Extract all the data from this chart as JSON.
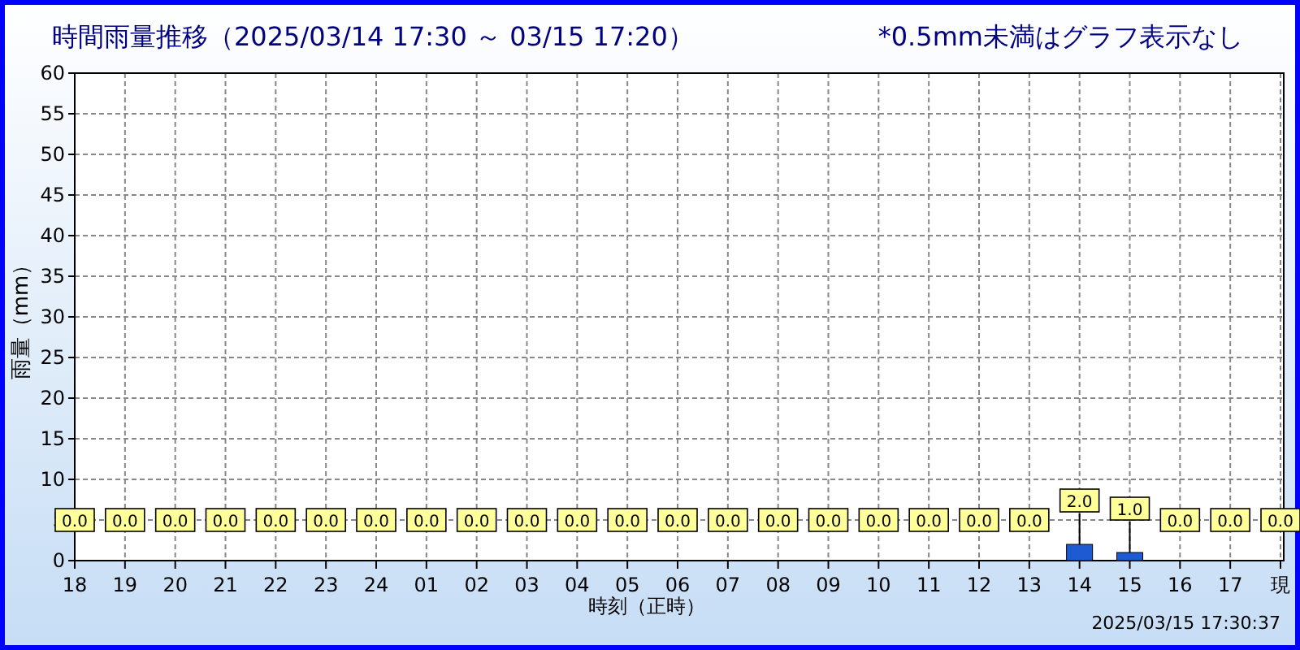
{
  "chart_data": {
    "type": "bar",
    "title": "時間雨量推移（2025/03/14 17:30 ～ 03/15 17:20）",
    "subtitle": "*0.5mm未満はグラフ表示なし",
    "xlabel": "時刻（正時）",
    "ylabel": "雨量（mm）",
    "annotations": [
      "2025/03/15 17:30:37"
    ],
    "categories": [
      "18",
      "19",
      "20",
      "21",
      "22",
      "23",
      "24",
      "01",
      "02",
      "03",
      "04",
      "05",
      "06",
      "07",
      "08",
      "09",
      "10",
      "11",
      "12",
      "13",
      "14",
      "15",
      "16",
      "17",
      "現"
    ],
    "values": [
      0,
      0,
      0,
      0,
      0,
      0,
      0,
      0,
      0,
      0,
      0,
      0,
      0,
      0,
      0,
      0,
      0,
      0,
      0,
      0,
      2.0,
      1.0,
      0,
      0,
      0
    ],
    "value_labels": [
      "0.0",
      "0.0",
      "0.0",
      "0.0",
      "0.0",
      "0.0",
      "0.0",
      "0.0",
      "0.0",
      "0.0",
      "0.0",
      "0.0",
      "0.0",
      "0.0",
      "0.0",
      "0.0",
      "0.0",
      "0.0",
      "0.0",
      "0.0",
      "2.0",
      "1.0",
      "0.0",
      "0.0",
      "0.0"
    ],
    "color": "#1e5ad2",
    "ylim": [
      0,
      60
    ],
    "yticks": [
      0,
      5,
      10,
      15,
      20,
      25,
      30,
      35,
      40,
      45,
      50,
      55,
      60
    ],
    "grid": true
  }
}
